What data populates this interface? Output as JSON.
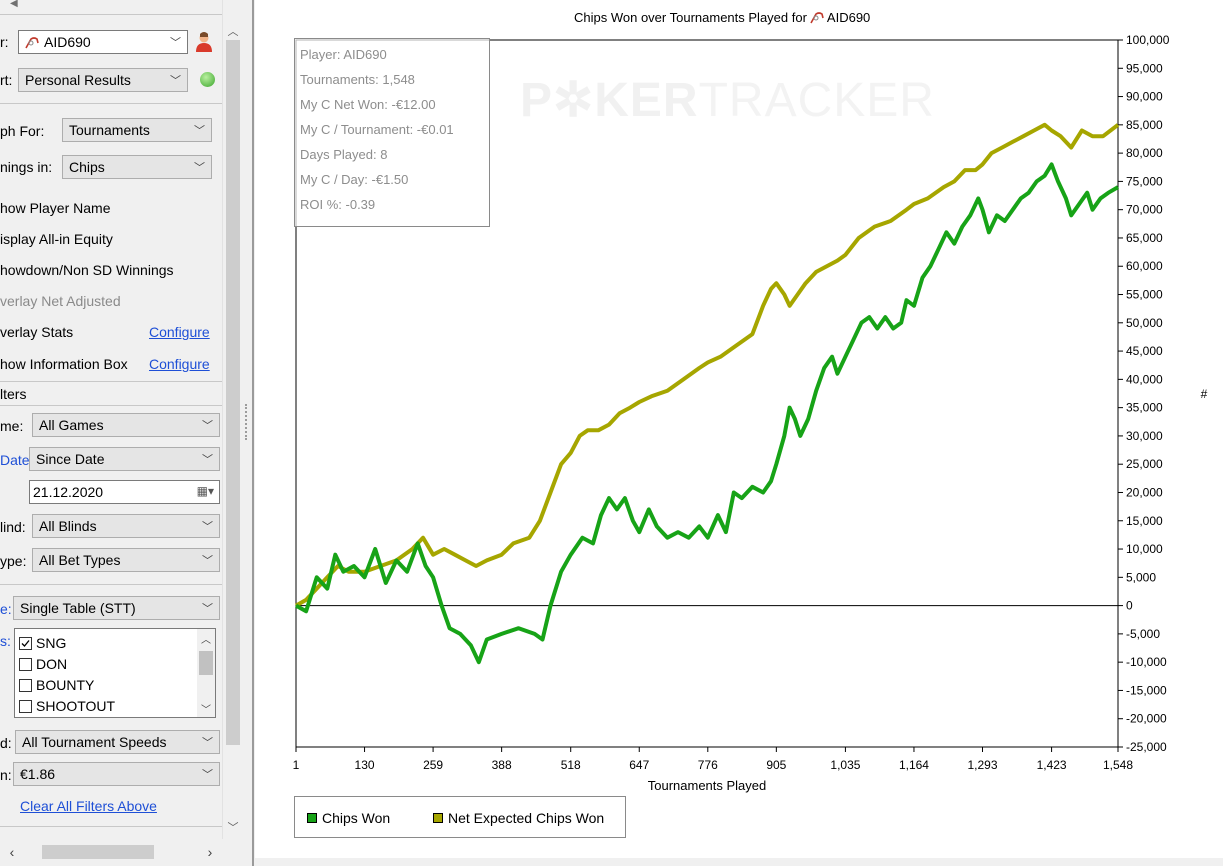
{
  "panel": {
    "player_label": "r:",
    "player_value": "AID690",
    "report_label": "rt:",
    "report_value": "Personal Results",
    "graph_for_label": "ph For:",
    "graph_for_value": "Tournaments",
    "winnings_label": "nings in:",
    "winnings_value": "Chips",
    "options": [
      {
        "label": "how Player Name",
        "enabled": true
      },
      {
        "label": "isplay All-in Equity",
        "enabled": true
      },
      {
        "label": "howdown/Non SD Winnings",
        "enabled": true
      },
      {
        "label": "verlay Net Adjusted",
        "enabled": false
      },
      {
        "label": "verlay Stats",
        "enabled": true,
        "link": "Configure"
      },
      {
        "label": "how Information Box",
        "enabled": true,
        "link": "Configure"
      }
    ],
    "filters_header": "lters",
    "game_label": "me:",
    "game_value": "All Games",
    "date_label": "Date:",
    "date_value": "Since Date",
    "date_input": "21.12.2020",
    "blind_label": "lind:",
    "blind_value": "All Blinds",
    "bettype_label": "ype:",
    "bettype_value": "All Bet Types",
    "table_label": "e:",
    "table_value": "Single Table (STT)",
    "types_label": "s:",
    "types": [
      {
        "label": "SNG",
        "checked": true
      },
      {
        "label": "DON",
        "checked": false
      },
      {
        "label": "BOUNTY",
        "checked": false
      },
      {
        "label": "SHOOTOUT",
        "checked": false
      }
    ],
    "speed_label": "d:",
    "speed_value": "All Tournament Speeds",
    "buyin_label": "n:",
    "buyin_value": "€1.86",
    "clear_link": "Clear All Filters Above"
  },
  "info_box": [
    "Player: AID690",
    "Tournaments: 1,548",
    "My C Net Won: -€12.00",
    "My C / Tournament: -€0.01",
    "Days Played: 8",
    "My C / Day: -€1.50",
    "ROI %: -0.39"
  ],
  "watermark": {
    "bold": "P✲KER",
    "thin": "TRACKER"
  },
  "colors": {
    "chips_won": "#17a317",
    "net_expected": "#a6a600",
    "link": "#1e4fd6"
  },
  "chart_data": {
    "type": "line",
    "title": "Chips Won over Tournaments Played for",
    "title_player": "AID690",
    "xlabel": "Tournaments Played",
    "ylabel": "#",
    "xlim": [
      1,
      1548
    ],
    "ylim": [
      -25000,
      100000
    ],
    "x_ticks": [
      "1",
      "130",
      "259",
      "388",
      "518",
      "647",
      "776",
      "905",
      "1,035",
      "1,164",
      "1,293",
      "1,423",
      "1,548"
    ],
    "y_ticks": [
      "100,000",
      "95,000",
      "90,000",
      "85,000",
      "80,000",
      "75,000",
      "70,000",
      "65,000",
      "60,000",
      "55,000",
      "50,000",
      "45,000",
      "40,000",
      "35,000",
      "30,000",
      "25,000",
      "20,000",
      "15,000",
      "10,000",
      "5,000",
      "0",
      "-5,000",
      "-10,000",
      "-15,000",
      "-20,000",
      "-25,000"
    ],
    "legend_position": "bottom-left",
    "series": [
      {
        "name": "Chips Won",
        "x": [
          1,
          20,
          40,
          60,
          75,
          90,
          110,
          130,
          150,
          170,
          190,
          210,
          230,
          245,
          259,
          275,
          290,
          310,
          330,
          345,
          360,
          388,
          420,
          450,
          465,
          480,
          500,
          518,
          540,
          560,
          575,
          590,
          605,
          620,
          635,
          647,
          665,
          680,
          700,
          720,
          740,
          760,
          776,
          795,
          810,
          825,
          840,
          860,
          880,
          895,
          905,
          920,
          930,
          940,
          950,
          965,
          980,
          995,
          1010,
          1020,
          1035,
          1050,
          1065,
          1080,
          1095,
          1110,
          1125,
          1140,
          1150,
          1164,
          1180,
          1195,
          1210,
          1225,
          1240,
          1255,
          1270,
          1285,
          1293,
          1305,
          1320,
          1335,
          1350,
          1365,
          1380,
          1395,
          1410,
          1423,
          1435,
          1450,
          1460,
          1475,
          1490,
          1500,
          1515,
          1530,
          1548
        ],
        "values": [
          0,
          -1000,
          5000,
          3000,
          9000,
          6000,
          7000,
          5000,
          10000,
          4000,
          8000,
          6000,
          11000,
          7000,
          5000,
          0,
          -4000,
          -5000,
          -7000,
          -10000,
          -6000,
          -5000,
          -4000,
          -5000,
          -6000,
          0,
          6000,
          9000,
          12000,
          11000,
          16000,
          19000,
          17000,
          19000,
          15000,
          13000,
          17000,
          14000,
          12000,
          13000,
          12000,
          14000,
          12000,
          16000,
          13000,
          20000,
          19000,
          21000,
          20000,
          22000,
          25000,
          30000,
          35000,
          33000,
          30000,
          33000,
          38000,
          42000,
          44000,
          41000,
          44000,
          47000,
          50000,
          51000,
          49000,
          51000,
          49000,
          50000,
          54000,
          53000,
          58000,
          60000,
          63000,
          66000,
          64000,
          67000,
          69000,
          72000,
          70000,
          66000,
          69000,
          68000,
          70000,
          72000,
          73000,
          75000,
          76000,
          78000,
          75000,
          72000,
          69000,
          71000,
          73000,
          70000,
          72000,
          73000,
          74000
        ]
      },
      {
        "name": "Net Expected Chips Won",
        "x": [
          1,
          20,
          40,
          60,
          80,
          100,
          130,
          160,
          190,
          220,
          240,
          259,
          280,
          300,
          320,
          340,
          360,
          388,
          410,
          440,
          460,
          480,
          500,
          518,
          535,
          550,
          570,
          590,
          610,
          630,
          647,
          670,
          700,
          730,
          760,
          776,
          800,
          830,
          860,
          880,
          895,
          905,
          920,
          930,
          945,
          960,
          980,
          1000,
          1020,
          1035,
          1060,
          1090,
          1120,
          1150,
          1164,
          1190,
          1220,
          1240,
          1260,
          1280,
          1293,
          1310,
          1330,
          1350,
          1370,
          1390,
          1410,
          1423,
          1440,
          1460,
          1480,
          1500,
          1520,
          1548
        ],
        "values": [
          0,
          1000,
          3000,
          5000,
          7000,
          6000,
          6000,
          7000,
          8000,
          10000,
          12000,
          9000,
          10000,
          9000,
          8000,
          7000,
          8000,
          9000,
          11000,
          12000,
          15000,
          20000,
          25000,
          27000,
          30000,
          31000,
          31000,
          32000,
          34000,
          35000,
          36000,
          37000,
          38000,
          40000,
          42000,
          43000,
          44000,
          46000,
          48000,
          53000,
          56000,
          57000,
          55000,
          53000,
          55000,
          57000,
          59000,
          60000,
          61000,
          62000,
          65000,
          67000,
          68000,
          70000,
          71000,
          72000,
          74000,
          75000,
          77000,
          77000,
          78000,
          80000,
          81000,
          82000,
          83000,
          84000,
          85000,
          84000,
          83000,
          81000,
          84000,
          83000,
          83000,
          85000
        ]
      }
    ]
  }
}
